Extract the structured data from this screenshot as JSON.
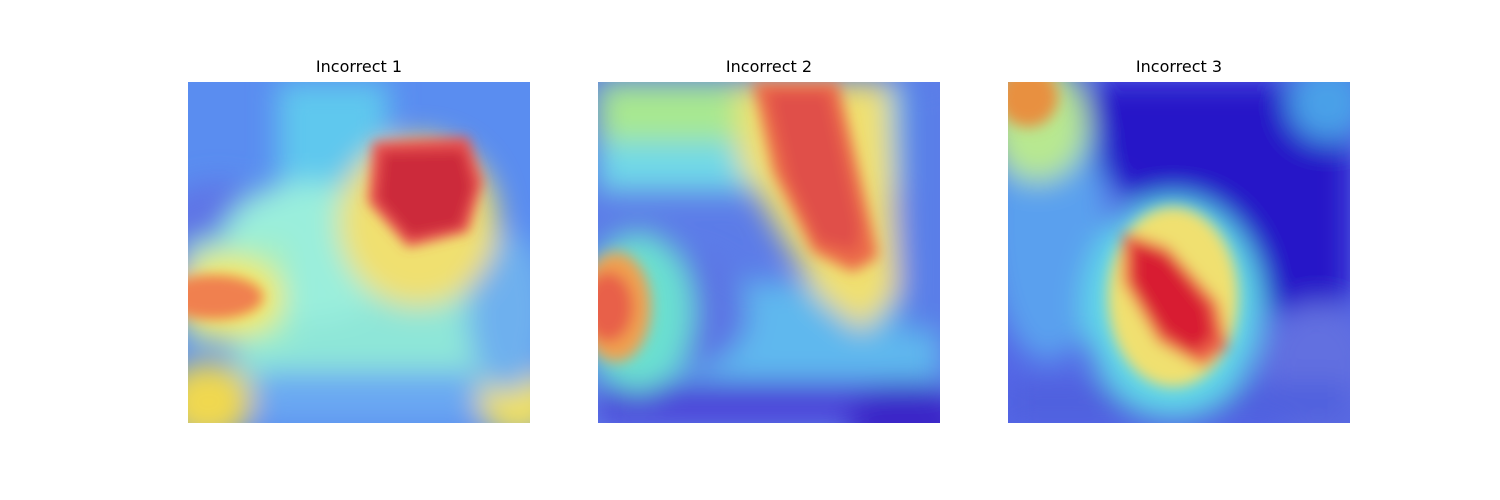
{
  "figure": {
    "panels": [
      {
        "title": "Incorrect 1"
      },
      {
        "title": "Incorrect 2"
      },
      {
        "title": "Incorrect 3"
      }
    ]
  }
}
